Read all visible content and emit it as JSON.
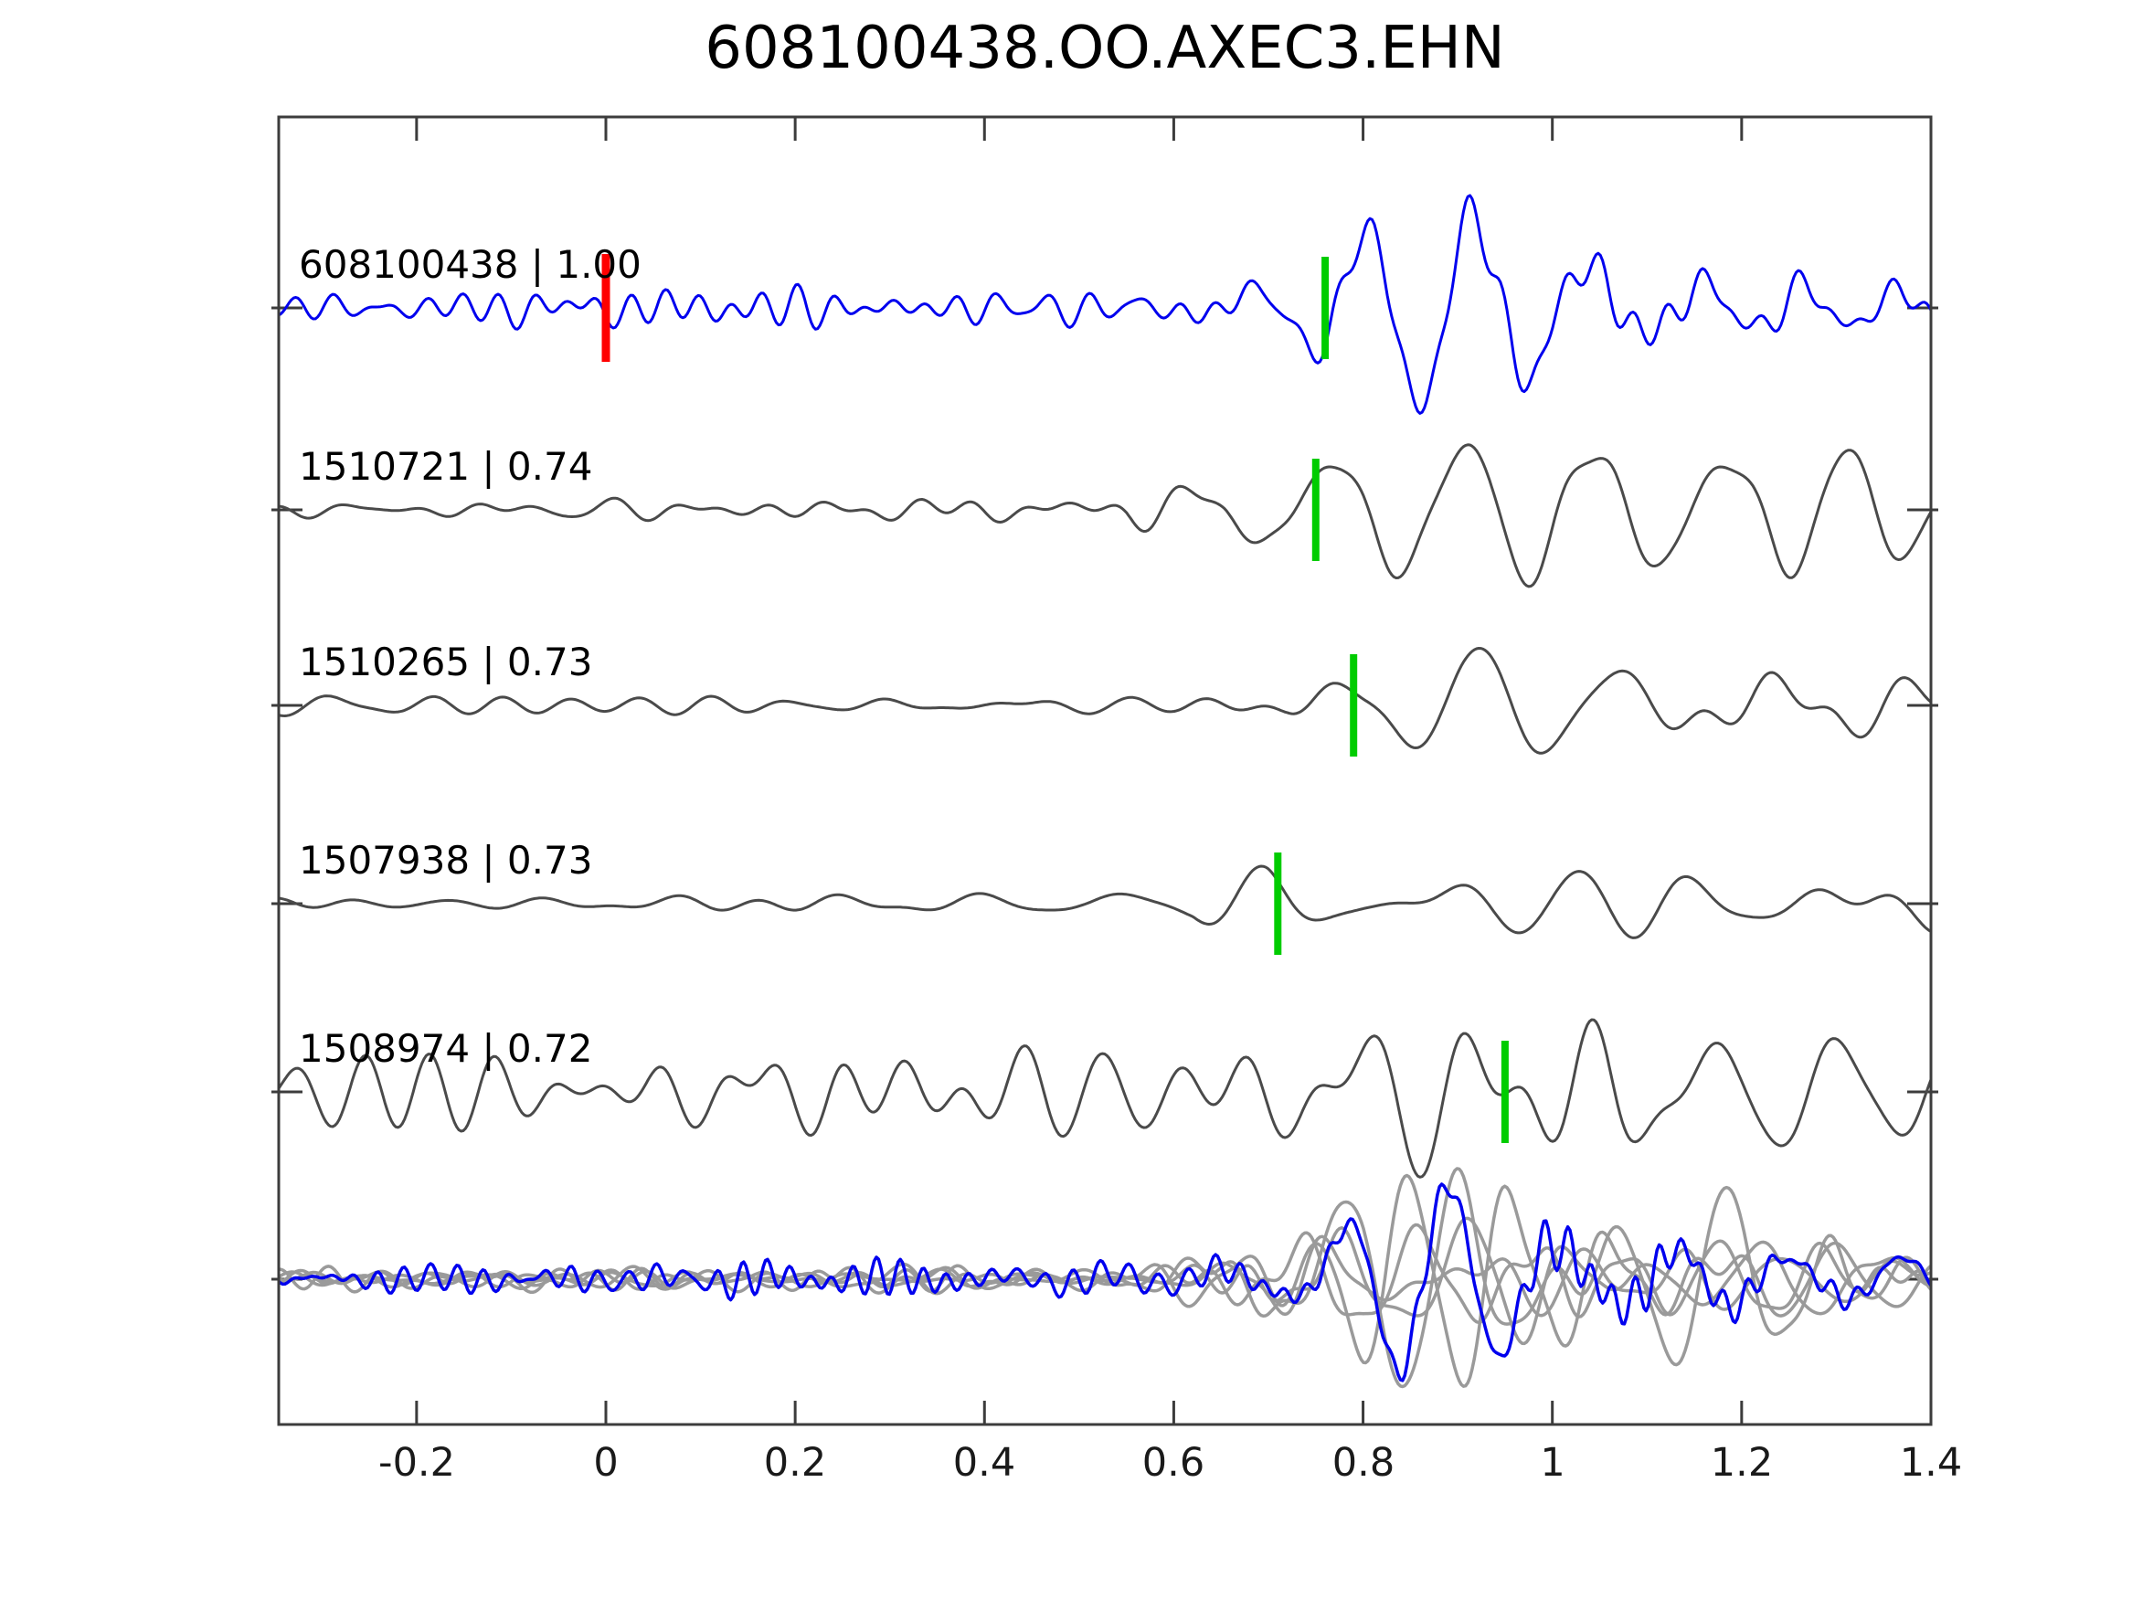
{
  "figure": {
    "title": "608100438.OO.AXEC3.EHN"
  },
  "chart_data": {
    "type": "line",
    "title": "608100438.OO.AXEC3.EHN",
    "subtitle": "",
    "xlabel": "",
    "ylabel": "",
    "xlim": [
      -0.346,
      1.4
    ],
    "grid": false,
    "legend": null,
    "x_ticks": [
      -0.2,
      0,
      0.2,
      0.4,
      0.6,
      0.8,
      1,
      1.2,
      1.4
    ],
    "x_tick_labels": [
      "-0.2",
      "0",
      "0.2",
      "0.4",
      "0.6",
      "0.8",
      "1",
      "1.2",
      "1.4"
    ],
    "colors": {
      "detection_trace": "#0000ee",
      "template_trace": "#4a4a4a",
      "overlay_gray": "#9a9a9a",
      "pick_marker": "#00cc00",
      "detection_marker": "#ff0000",
      "axis": "#3c3c3c",
      "text": "#000000"
    },
    "traces": [
      {
        "label": "608100438 | 1.00",
        "event_id": "608100438",
        "correlation": 1.0,
        "color": "#0000ee",
        "line_width": 3,
        "markers": [
          {
            "type": "detection",
            "time": 0.0,
            "color": "#ff0000"
          },
          {
            "type": "pick",
            "time": 0.76,
            "color": "#00cc00"
          }
        ],
        "components": [
          {
            "seed": 101,
            "f_lo": 18,
            "f_hi": 30,
            "env": [
              [
                -0.35,
                16
              ],
              [
                0.55,
                18
              ],
              [
                0.7,
                24
              ],
              [
                0.9,
                18
              ],
              [
                1.4,
                16
              ]
            ]
          },
          {
            "seed": 102,
            "f_lo": 7,
            "f_hi": 11,
            "env": [
              [
                -0.35,
                4
              ],
              [
                0.55,
                6
              ],
              [
                0.66,
                20
              ],
              [
                0.75,
                55
              ],
              [
                0.82,
                95
              ],
              [
                0.9,
                115
              ],
              [
                1.02,
                100
              ],
              [
                1.1,
                62
              ],
              [
                1.2,
                58
              ],
              [
                1.4,
                52
              ]
            ]
          }
        ]
      },
      {
        "label": "1510721 | 0.74",
        "event_id": "1510721",
        "correlation": 0.74,
        "color": "#4a4a4a",
        "line_width": 3,
        "markers": [
          {
            "type": "pick",
            "time": 0.75,
            "color": "#00cc00"
          }
        ],
        "components": [
          {
            "seed": 201,
            "f_lo": 11,
            "f_hi": 20,
            "env": [
              [
                -0.35,
                10
              ],
              [
                0.5,
                12
              ],
              [
                0.7,
                18
              ],
              [
                1.4,
                16
              ]
            ]
          },
          {
            "seed": 202,
            "f_lo": 6.5,
            "f_hi": 10,
            "env": [
              [
                -0.35,
                7
              ],
              [
                0.55,
                9
              ],
              [
                0.65,
                30
              ],
              [
                0.73,
                85
              ],
              [
                0.85,
                100
              ],
              [
                1.0,
                90
              ],
              [
                1.2,
                78
              ],
              [
                1.4,
                72
              ]
            ]
          }
        ]
      },
      {
        "label": "1510265 | 0.73",
        "event_id": "1510265",
        "correlation": 0.73,
        "color": "#4a4a4a",
        "line_width": 3,
        "markers": [
          {
            "type": "pick",
            "time": 0.79,
            "color": "#00cc00"
          }
        ],
        "components": [
          {
            "seed": 301,
            "f_lo": 10,
            "f_hi": 18,
            "env": [
              [
                -0.35,
                8
              ],
              [
                0.6,
                10
              ],
              [
                0.8,
                16
              ],
              [
                1.4,
                14
              ]
            ]
          },
          {
            "seed": 302,
            "f_lo": 6,
            "f_hi": 9.5,
            "env": [
              [
                -0.35,
                6
              ],
              [
                0.6,
                8
              ],
              [
                0.72,
                20
              ],
              [
                0.82,
                70
              ],
              [
                0.9,
                105
              ],
              [
                1.05,
                80
              ],
              [
                1.2,
                65
              ],
              [
                1.4,
                58
              ]
            ]
          }
        ]
      },
      {
        "label": "1507938 | 0.73",
        "event_id": "1507938",
        "correlation": 0.73,
        "color": "#4a4a4a",
        "line_width": 3,
        "markers": [
          {
            "type": "pick",
            "time": 0.71,
            "color": "#00cc00"
          }
        ],
        "components": [
          {
            "seed": 401,
            "f_lo": 8,
            "f_hi": 14,
            "env": [
              [
                -0.35,
                8
              ],
              [
                0.55,
                10
              ],
              [
                0.7,
                14
              ],
              [
                1.4,
                12
              ]
            ]
          },
          {
            "seed": 402,
            "f_lo": 5.5,
            "f_hi": 9,
            "env": [
              [
                -0.35,
                7
              ],
              [
                0.5,
                9
              ],
              [
                0.62,
                25
              ],
              [
                0.7,
                75
              ],
              [
                0.8,
                100
              ],
              [
                0.95,
                95
              ],
              [
                1.1,
                80
              ],
              [
                1.25,
                70
              ],
              [
                1.4,
                78
              ]
            ]
          }
        ]
      },
      {
        "label": "1508974 | 0.72",
        "event_id": "1508974",
        "correlation": 0.72,
        "color": "#4a4a4a",
        "line_width": 3,
        "markers": [
          {
            "type": "pick",
            "time": 0.95,
            "color": "#00cc00"
          }
        ],
        "components": [
          {
            "seed": 501,
            "f_lo": 9,
            "f_hi": 17,
            "env": [
              [
                -0.35,
                30
              ],
              [
                0.2,
                38
              ],
              [
                0.5,
                40
              ],
              [
                0.7,
                42
              ],
              [
                1.4,
                35
              ]
            ]
          },
          {
            "seed": 502,
            "f_lo": 5.5,
            "f_hi": 9,
            "env": [
              [
                -0.35,
                12
              ],
              [
                0.4,
                18
              ],
              [
                0.6,
                30
              ],
              [
                0.75,
                60
              ],
              [
                0.9,
                110
              ],
              [
                1.05,
                115
              ],
              [
                1.2,
                80
              ],
              [
                1.4,
                70
              ]
            ]
          }
        ]
      }
    ],
    "overlay_traces": [
      {
        "color": "#9a9a9a",
        "line_width": 3.5,
        "components": [
          {
            "seed": 601,
            "f_lo": 12,
            "f_hi": 22,
            "env": [
              [
                -0.35,
                10
              ],
              [
                0.55,
                12
              ],
              [
                0.7,
                20
              ],
              [
                1.1,
                16
              ],
              [
                1.4,
                12
              ]
            ]
          },
          {
            "seed": 602,
            "f_lo": 6.5,
            "f_hi": 11,
            "env": [
              [
                -0.35,
                5
              ],
              [
                0.55,
                8
              ],
              [
                0.68,
                45
              ],
              [
                0.8,
                95
              ],
              [
                0.95,
                85
              ],
              [
                1.1,
                50
              ],
              [
                1.25,
                55
              ],
              [
                1.4,
                35
              ]
            ]
          }
        ]
      },
      {
        "color": "#9a9a9a",
        "line_width": 3.5,
        "components": [
          {
            "seed": 611,
            "f_lo": 12,
            "f_hi": 22,
            "env": [
              [
                -0.35,
                9
              ],
              [
                0.55,
                11
              ],
              [
                0.7,
                18
              ],
              [
                1.1,
                15
              ],
              [
                1.4,
                11
              ]
            ]
          },
          {
            "seed": 612,
            "f_lo": 6.5,
            "f_hi": 11,
            "env": [
              [
                -0.35,
                4
              ],
              [
                0.55,
                7
              ],
              [
                0.68,
                38
              ],
              [
                0.8,
                80
              ],
              [
                0.95,
                75
              ],
              [
                1.1,
                45
              ],
              [
                1.25,
                50
              ],
              [
                1.4,
                30
              ]
            ]
          }
        ]
      },
      {
        "color": "#9a9a9a",
        "line_width": 3.5,
        "components": [
          {
            "seed": 621,
            "f_lo": 12,
            "f_hi": 22,
            "env": [
              [
                -0.35,
                10
              ],
              [
                0.55,
                12
              ],
              [
                0.7,
                20
              ],
              [
                1.1,
                18
              ],
              [
                1.4,
                13
              ]
            ]
          },
          {
            "seed": 622,
            "f_lo": 6.5,
            "f_hi": 11,
            "env": [
              [
                -0.35,
                5
              ],
              [
                0.55,
                8
              ],
              [
                0.68,
                40
              ],
              [
                0.8,
                90
              ],
              [
                0.95,
                80
              ],
              [
                1.05,
                60
              ],
              [
                1.15,
                95
              ],
              [
                1.3,
                70
              ],
              [
                1.4,
                40
              ]
            ]
          }
        ]
      },
      {
        "color": "#9a9a9a",
        "line_width": 3.5,
        "components": [
          {
            "seed": 631,
            "f_lo": 12,
            "f_hi": 22,
            "env": [
              [
                -0.35,
                8
              ],
              [
                0.5,
                10
              ],
              [
                0.7,
                16
              ],
              [
                1.1,
                14
              ],
              [
                1.4,
                10
              ]
            ]
          },
          {
            "seed": 632,
            "f_lo": 6.5,
            "f_hi": 11,
            "env": [
              [
                -0.35,
                4
              ],
              [
                0.5,
                6
              ],
              [
                0.68,
                30
              ],
              [
                0.8,
                70
              ],
              [
                0.95,
                65
              ],
              [
                1.1,
                40
              ],
              [
                1.4,
                28
              ]
            ]
          }
        ]
      },
      {
        "color": "#9a9a9a",
        "line_width": 3.5,
        "components": [
          {
            "seed": 641,
            "f_lo": 12,
            "f_hi": 22,
            "env": [
              [
                -0.35,
                9
              ],
              [
                0.55,
                11
              ],
              [
                0.7,
                19
              ],
              [
                1.1,
                16
              ],
              [
                1.4,
                12
              ]
            ]
          },
          {
            "seed": 642,
            "f_lo": 6.5,
            "f_hi": 11,
            "env": [
              [
                -0.35,
                5
              ],
              [
                0.55,
                7
              ],
              [
                0.68,
                42
              ],
              [
                0.82,
                88
              ],
              [
                0.98,
                78
              ],
              [
                1.1,
                48
              ],
              [
                1.25,
                58
              ],
              [
                1.4,
                32
              ]
            ]
          }
        ]
      },
      {
        "color": "#0000ee",
        "line_width": 3.5,
        "components": [
          {
            "seed": 651,
            "f_lo": 26,
            "f_hi": 44,
            "env": [
              [
                -0.35,
                16
              ],
              [
                0.55,
                18
              ],
              [
                0.7,
                24
              ],
              [
                1.1,
                20
              ],
              [
                1.4,
                18
              ]
            ]
          },
          {
            "seed": 652,
            "f_lo": 8,
            "f_hi": 12.5,
            "env": [
              [
                -0.35,
                3
              ],
              [
                0.6,
                6
              ],
              [
                0.72,
                30
              ],
              [
                0.82,
                85
              ],
              [
                0.95,
                88
              ],
              [
                1.05,
                45
              ],
              [
                1.2,
                40
              ],
              [
                1.4,
                30
              ]
            ]
          }
        ]
      }
    ]
  }
}
